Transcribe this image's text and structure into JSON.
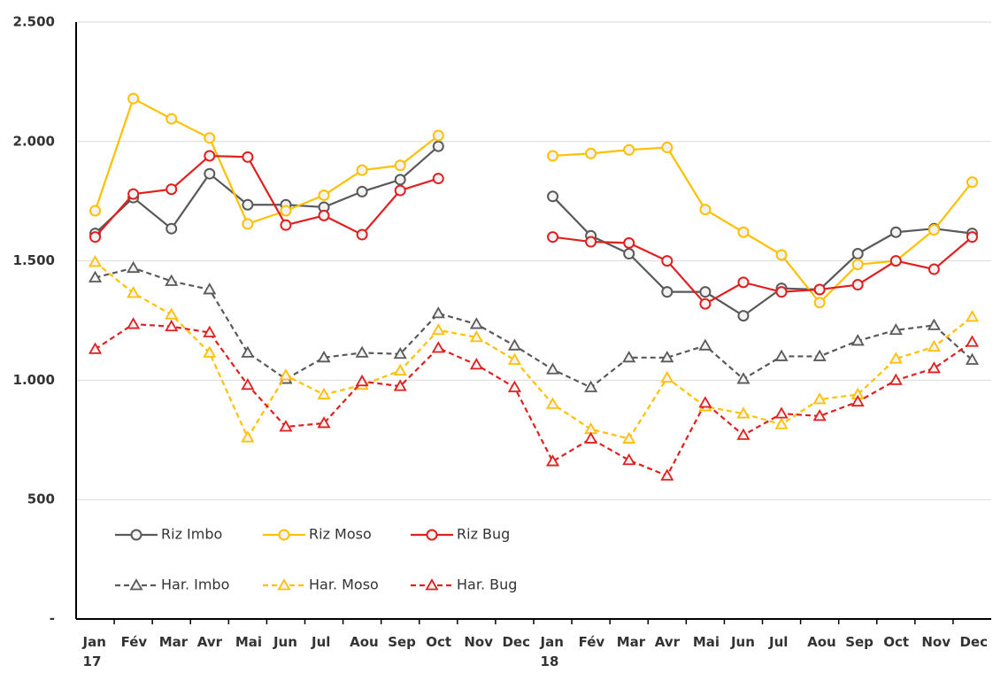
{
  "chart_data": {
    "type": "line",
    "categories": [
      "Jan\n17",
      "Fév",
      "Mar",
      "Avr",
      "Mai",
      "Jun",
      "Jul",
      "Aou",
      "Sep",
      "Oct",
      "Nov",
      "Dec",
      "Jan\n18",
      "Fév",
      "Mar",
      "Avr",
      "Mai",
      "Jun",
      "Jul",
      "Aou",
      "Sep",
      "Oct",
      "Nov",
      "Dec"
    ],
    "ylim": [
      0,
      2500
    ],
    "yticks": [
      {
        "value": 0,
        "label": "-"
      },
      500,
      {
        "value": 1000,
        "label": "1.000"
      },
      {
        "value": 1500,
        "label": "1.500"
      },
      {
        "value": 2000,
        "label": "2.000"
      },
      {
        "value": 2500,
        "label": "2.500"
      }
    ],
    "grid": true,
    "series": [
      {
        "name": "Riz Imbo",
        "color": "#595959",
        "marker": "circle",
        "dashed": false,
        "values": [
          1615,
          1765,
          1635,
          1865,
          1735,
          1735,
          1725,
          1790,
          1840,
          1980,
          null,
          null,
          1770,
          1605,
          1530,
          1370,
          1370,
          1270,
          1385,
          1380,
          1530,
          1620,
          1635,
          1615
        ]
      },
      {
        "name": "Riz Moso",
        "color": "#ffc000",
        "marker": "circle",
        "dashed": false,
        "values": [
          1710,
          2180,
          2095,
          2015,
          1655,
          1710,
          1775,
          1880,
          1900,
          2025,
          null,
          null,
          1940,
          1950,
          1965,
          1975,
          1715,
          1620,
          1525,
          1325,
          1485,
          1500,
          1630,
          1830
        ]
      },
      {
        "name": "Riz Bug",
        "color": "#e02020",
        "marker": "circle",
        "dashed": false,
        "values": [
          1600,
          1780,
          1800,
          1940,
          1935,
          1650,
          1690,
          1610,
          1795,
          1845,
          null,
          null,
          1600,
          1580,
          1575,
          1500,
          1320,
          1410,
          1370,
          1380,
          1400,
          1500,
          1465,
          1600
        ]
      },
      {
        "name": "Har. Imbo",
        "color": "#595959",
        "marker": "triangle",
        "dashed": true,
        "values": [
          1430,
          1470,
          1415,
          1380,
          1115,
          1005,
          1095,
          1115,
          1110,
          1280,
          1235,
          1145,
          1045,
          970,
          1095,
          1095,
          1145,
          1005,
          1100,
          1100,
          1165,
          1210,
          1230,
          1085
        ]
      },
      {
        "name": "Har. Moso",
        "color": "#ffc000",
        "marker": "triangle",
        "dashed": true,
        "values": [
          1495,
          1365,
          1275,
          1115,
          760,
          1020,
          940,
          980,
          1040,
          1210,
          1180,
          1085,
          900,
          795,
          755,
          1010,
          890,
          860,
          815,
          920,
          940,
          1090,
          1140,
          1265
        ]
      },
      {
        "name": "Har. Bug",
        "color": "#e02020",
        "marker": "triangle",
        "dashed": true,
        "values": [
          1130,
          1235,
          1225,
          1200,
          980,
          805,
          820,
          995,
          975,
          1135,
          1065,
          970,
          660,
          755,
          665,
          600,
          905,
          770,
          860,
          850,
          910,
          1000,
          1050,
          1160
        ]
      }
    ]
  }
}
